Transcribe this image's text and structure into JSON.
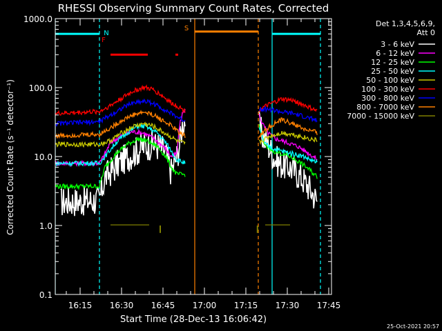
{
  "chart_data": {
    "type": "line",
    "title": "RHESSI Observing Summary Count Rates, Corrected",
    "xlabel": "Start Time (28-Dec-13 16:06:42)",
    "ylabel": "Corrected Count Rate (s⁻¹ detector⁻¹)",
    "yscale": "log",
    "ylim": [
      0.1,
      1000
    ],
    "xlim_minutes_after_1606": [
      0,
      100
    ],
    "yticks": [
      "0.1",
      "1.0",
      "10.0",
      "100.0",
      "1000.0"
    ],
    "xticks": [
      "16:15",
      "16:30",
      "16:45",
      "17:00",
      "17:15",
      "17:30",
      "17:45"
    ],
    "xtick_minutes": [
      9,
      24,
      39,
      54,
      69,
      84,
      99
    ],
    "legend_header": "Det 1,3,4,5,6,9,",
    "legend_header2": "Att 0",
    "footer_stamp": "25-Oct-2021 20:57",
    "flags": [
      {
        "label": "N",
        "color": "#00ffff"
      },
      {
        "label": "F",
        "color": "#ff0000"
      },
      {
        "label": "S",
        "color": "#ff8000"
      }
    ],
    "segments": [
      {
        "name": "N",
        "color": "#00ffff",
        "y": 600,
        "spans": [
          [
            0,
            16
          ],
          [
            78.5,
            96
          ]
        ]
      },
      {
        "name": "F",
        "color": "#ff0000",
        "y": 300,
        "spans": [
          [
            20,
            33.5
          ],
          [
            43.5,
            44.5
          ]
        ]
      },
      {
        "name": "S",
        "color": "#ff8000",
        "y": 650,
        "spans": [
          [
            50.5,
            73.5
          ]
        ]
      }
    ],
    "vlines": [
      {
        "x": 0,
        "color": "#00ffff",
        "style": "solid"
      },
      {
        "x": 16,
        "color": "#00ffff",
        "style": "dashed"
      },
      {
        "x": 50.5,
        "color": "#ff8000",
        "style": "solid"
      },
      {
        "x": 73.5,
        "color": "#ff8000",
        "style": "dashed"
      },
      {
        "x": 78.5,
        "color": "#00ffff",
        "style": "solid"
      },
      {
        "x": 96,
        "color": "#00ffff",
        "style": "dashed"
      }
    ],
    "series": [
      {
        "name": "3 - 6 keV",
        "color": "#ffffff",
        "points1": [
          [
            2,
            2.2
          ],
          [
            16,
            2.3
          ],
          [
            18,
            5
          ],
          [
            23,
            8
          ],
          [
            28,
            11
          ],
          [
            32,
            14
          ],
          [
            35,
            15
          ],
          [
            38,
            14
          ],
          [
            40,
            11
          ],
          [
            42,
            6
          ],
          [
            44,
            10
          ],
          [
            45,
            15
          ],
          [
            46,
            28
          ],
          [
            47,
            35
          ]
        ],
        "points2": [
          [
            73.8,
            28
          ],
          [
            75,
            20
          ],
          [
            77,
            15
          ],
          [
            79,
            10
          ],
          [
            81,
            8
          ],
          [
            83,
            7.5
          ],
          [
            85,
            7
          ],
          [
            87,
            6
          ],
          [
            89,
            5
          ],
          [
            91,
            4
          ],
          [
            93,
            3
          ],
          [
            95,
            2.2
          ]
        ]
      },
      {
        "name": "6 - 12 keV",
        "color": "#ff00ff",
        "points1": [
          [
            0,
            8
          ],
          [
            16,
            8
          ],
          [
            18,
            11
          ],
          [
            20,
            16
          ],
          [
            24,
            20
          ],
          [
            28,
            23
          ],
          [
            32,
            22
          ],
          [
            36,
            18
          ],
          [
            40,
            13
          ],
          [
            42,
            10
          ],
          [
            44,
            11
          ],
          [
            45,
            28
          ],
          [
            46,
            42
          ],
          [
            47,
            48
          ]
        ],
        "points2": [
          [
            73.8,
            40
          ],
          [
            75,
            30
          ],
          [
            77,
            22
          ],
          [
            80,
            18
          ],
          [
            84,
            16
          ],
          [
            88,
            14
          ],
          [
            92,
            11
          ],
          [
            95,
            9
          ]
        ]
      },
      {
        "name": "12 - 25 keV",
        "color": "#00ff00",
        "points1": [
          [
            0,
            3.7
          ],
          [
            16,
            3.7
          ],
          [
            18,
            7
          ],
          [
            22,
            11
          ],
          [
            26,
            15
          ],
          [
            30,
            18
          ],
          [
            33,
            17
          ],
          [
            37,
            14
          ],
          [
            40,
            10
          ],
          [
            42,
            7
          ],
          [
            44,
            5.5
          ],
          [
            47,
            5.5
          ]
        ],
        "points2": [
          [
            73.8,
            28
          ],
          [
            76,
            14
          ],
          [
            79,
            12
          ],
          [
            82,
            11
          ],
          [
            85,
            10
          ],
          [
            88,
            8.5
          ],
          [
            91,
            7
          ],
          [
            95,
            5
          ]
        ]
      },
      {
        "name": "25 - 50 keV",
        "color": "#00ffff",
        "points1": [
          [
            0,
            8
          ],
          [
            16,
            8
          ],
          [
            18,
            10
          ],
          [
            22,
            16
          ],
          [
            26,
            22
          ],
          [
            30,
            28
          ],
          [
            33,
            27
          ],
          [
            37,
            22
          ],
          [
            40,
            16
          ],
          [
            42,
            12
          ],
          [
            44,
            9
          ],
          [
            47,
            8
          ]
        ],
        "points2": [
          [
            73.8,
            25
          ],
          [
            76,
            15
          ],
          [
            79,
            13
          ],
          [
            82,
            12
          ],
          [
            86,
            11
          ],
          [
            90,
            10
          ],
          [
            95,
            8
          ]
        ]
      },
      {
        "name": "50 - 100 keV",
        "color": "#c8c800",
        "points1": [
          [
            0,
            15
          ],
          [
            16,
            15
          ],
          [
            20,
            17
          ],
          [
            24,
            22
          ],
          [
            28,
            27
          ],
          [
            32,
            30
          ],
          [
            35,
            28
          ],
          [
            38,
            24
          ],
          [
            42,
            19
          ],
          [
            45,
            16
          ],
          [
            47,
            15.5
          ]
        ],
        "points2": [
          [
            73.8,
            16
          ],
          [
            78,
            20
          ],
          [
            82,
            22
          ],
          [
            86,
            21
          ],
          [
            90,
            19
          ],
          [
            95,
            17
          ]
        ]
      },
      {
        "name": "100 - 300 keV",
        "color": "#ff0000",
        "points1": [
          [
            0,
            42
          ],
          [
            16,
            45
          ],
          [
            20,
            55
          ],
          [
            24,
            70
          ],
          [
            28,
            88
          ],
          [
            32,
            100
          ],
          [
            35,
            95
          ],
          [
            38,
            80
          ],
          [
            42,
            60
          ],
          [
            45,
            52
          ],
          [
            47,
            45
          ]
        ],
        "points2": [
          [
            73.8,
            48
          ],
          [
            78,
            58
          ],
          [
            82,
            68
          ],
          [
            86,
            65
          ],
          [
            90,
            56
          ],
          [
            95,
            45
          ]
        ]
      },
      {
        "name": "300 - 800 keV",
        "color": "#0000ff",
        "points1": [
          [
            0,
            30
          ],
          [
            16,
            32
          ],
          [
            20,
            40
          ],
          [
            24,
            50
          ],
          [
            28,
            60
          ],
          [
            32,
            64
          ],
          [
            35,
            60
          ],
          [
            38,
            52
          ],
          [
            42,
            42
          ],
          [
            45,
            36
          ],
          [
            47,
            33
          ]
        ],
        "points2": [
          [
            73.8,
            50
          ],
          [
            78,
            48
          ],
          [
            82,
            44
          ],
          [
            86,
            42
          ],
          [
            90,
            38
          ],
          [
            95,
            33
          ]
        ]
      },
      {
        "name": "800 - 7000 keV",
        "color": "#ff8000",
        "points1": [
          [
            0,
            20
          ],
          [
            16,
            21
          ],
          [
            20,
            26
          ],
          [
            24,
            33
          ],
          [
            28,
            40
          ],
          [
            32,
            44
          ],
          [
            35,
            41
          ],
          [
            38,
            35
          ],
          [
            42,
            28
          ],
          [
            45,
            22
          ],
          [
            47,
            20
          ]
        ],
        "points2": [
          [
            73.8,
            20
          ],
          [
            78,
            28
          ],
          [
            82,
            34
          ],
          [
            86,
            30
          ],
          [
            90,
            25
          ],
          [
            95,
            22
          ]
        ]
      },
      {
        "name": "7000 - 15000 keV",
        "color": "#808000",
        "points1": [
          [
            20,
            1.02
          ],
          [
            34,
            1.02
          ]
        ],
        "points2": [
          [
            76,
            1.02
          ],
          [
            85,
            1.02
          ]
        ],
        "dips": [
          [
            38,
            0.78
          ],
          [
            73.2,
            0.78
          ]
        ]
      }
    ]
  }
}
